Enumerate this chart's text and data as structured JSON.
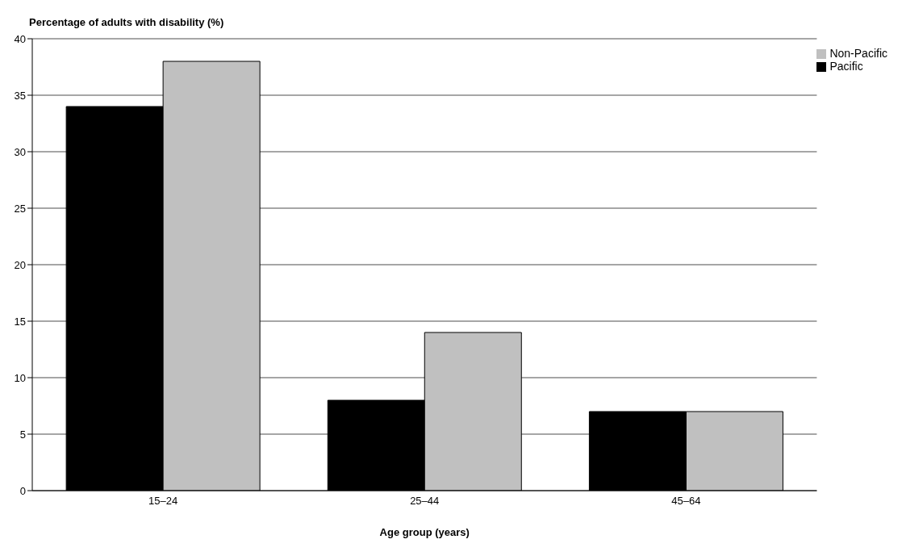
{
  "chart_data": {
    "type": "bar",
    "title": "Percentage of adults with disability (%)",
    "xlabel": "Age group (years)",
    "categories": [
      "15–24",
      "25–44",
      "45–64"
    ],
    "series": [
      {
        "name": "Pacific",
        "color": "#000000",
        "values": [
          34,
          8,
          7
        ]
      },
      {
        "name": "Non-Pacific",
        "color": "#c0c0c0",
        "values": [
          38,
          14,
          7
        ]
      }
    ],
    "ylim": [
      0,
      40
    ],
    "yticks": [
      0,
      5,
      10,
      15,
      20,
      25,
      30,
      35,
      40
    ],
    "grid": "y",
    "legend": "top right"
  }
}
